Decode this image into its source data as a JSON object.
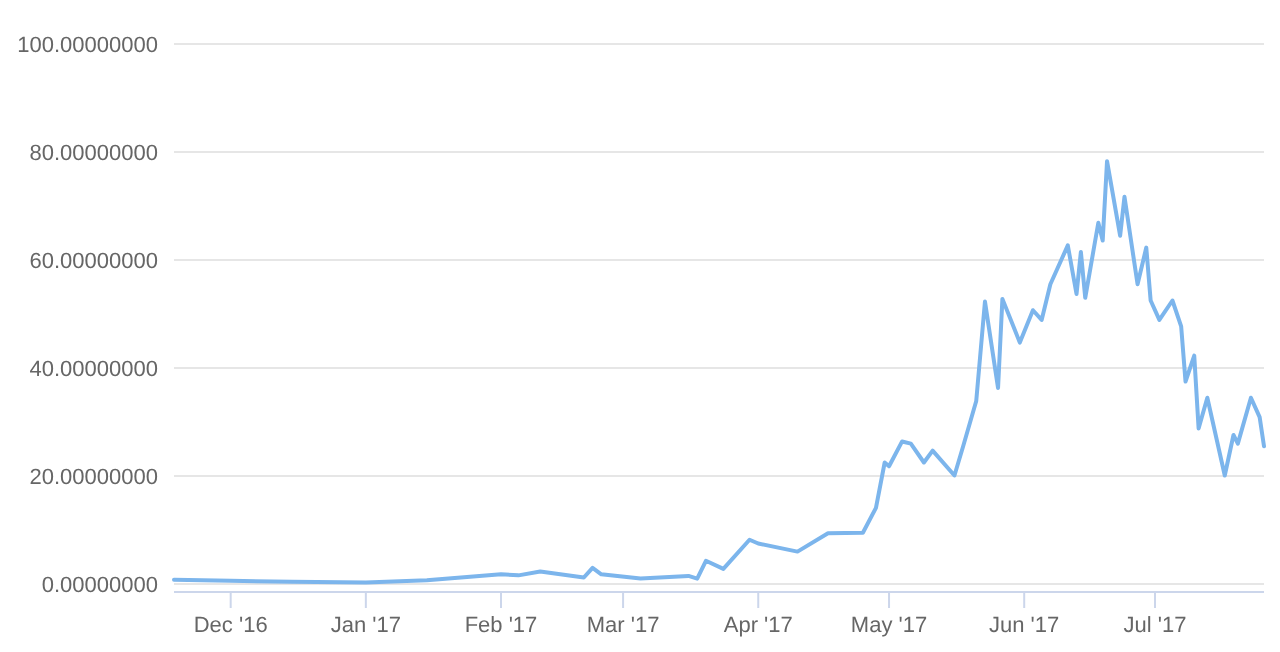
{
  "chart_data": {
    "type": "line",
    "grid": "y",
    "xlim": [
      "2016-11-18",
      "2017-07-26"
    ],
    "ylim": [
      0,
      100
    ],
    "yticks": [
      {
        "value": 0,
        "label": "0.00000000"
      },
      {
        "value": 20,
        "label": "20.00000000"
      },
      {
        "value": 40,
        "label": "40.00000000"
      },
      {
        "value": 60,
        "label": "60.00000000"
      },
      {
        "value": 80,
        "label": "80.00000000"
      },
      {
        "value": 100,
        "label": "100.00000000"
      }
    ],
    "xticks": [
      {
        "value": "2016-12-01",
        "label": "Dec '16"
      },
      {
        "value": "2017-01-01",
        "label": "Jan '17"
      },
      {
        "value": "2017-02-01",
        "label": "Feb '17"
      },
      {
        "value": "2017-03-01",
        "label": "Mar '17"
      },
      {
        "value": "2017-04-01",
        "label": "Apr '17"
      },
      {
        "value": "2017-05-01",
        "label": "May '17"
      },
      {
        "value": "2017-06-01",
        "label": "Jun '17"
      },
      {
        "value": "2017-07-01",
        "label": "Jul '17"
      }
    ],
    "x": [
      "2016-11-18",
      "2016-12-01",
      "2016-12-15",
      "2017-01-01",
      "2017-01-15",
      "2017-02-01",
      "2017-02-05",
      "2017-02-10",
      "2017-02-20",
      "2017-02-22",
      "2017-02-24",
      "2017-03-05",
      "2017-03-16",
      "2017-03-18",
      "2017-03-20",
      "2017-03-24",
      "2017-03-30",
      "2017-04-01",
      "2017-04-10",
      "2017-04-17",
      "2017-04-25",
      "2017-04-28",
      "2017-04-30",
      "2017-05-01",
      "2017-05-04",
      "2017-05-06",
      "2017-05-09",
      "2017-05-11",
      "2017-05-16",
      "2017-05-18",
      "2017-05-21",
      "2017-05-23",
      "2017-05-26",
      "2017-05-27",
      "2017-05-31",
      "2017-06-03",
      "2017-06-05",
      "2017-06-07",
      "2017-06-11",
      "2017-06-13",
      "2017-06-14",
      "2017-06-15",
      "2017-06-18",
      "2017-06-19",
      "2017-06-20",
      "2017-06-23",
      "2017-06-24",
      "2017-06-27",
      "2017-06-29",
      "2017-06-30",
      "2017-07-02",
      "2017-07-05",
      "2017-07-07",
      "2017-07-08",
      "2017-07-10",
      "2017-07-11",
      "2017-07-13",
      "2017-07-17",
      "2017-07-19",
      "2017-07-20",
      "2017-07-23",
      "2017-07-25",
      "2017-07-26"
    ],
    "series": [
      {
        "color": "#7cb5ec",
        "values": [
          0.8,
          0.6,
          0.4,
          0.3,
          0.7,
          1.8,
          1.6,
          2.3,
          1.2,
          3.0,
          1.8,
          1.0,
          1.5,
          1.0,
          4.3,
          2.8,
          8.2,
          7.5,
          6.0,
          9.4,
          9.5,
          14.1,
          22.5,
          21.8,
          26.4,
          26,
          22.5,
          24.7,
          20.1,
          25.5,
          33.9,
          52.3,
          36.3,
          52.8,
          44.7,
          50.7,
          48.9,
          55.5,
          62.7,
          53.7,
          61.5,
          53,
          66.9,
          63.6,
          78.3,
          64.5,
          71.7,
          55.5,
          62.3,
          52.5,
          48.9,
          52.5,
          47.7,
          37.5,
          42.3,
          28.8,
          34.5,
          20.1,
          27.6,
          26,
          34.5,
          30.9,
          25.5
        ]
      }
    ]
  }
}
